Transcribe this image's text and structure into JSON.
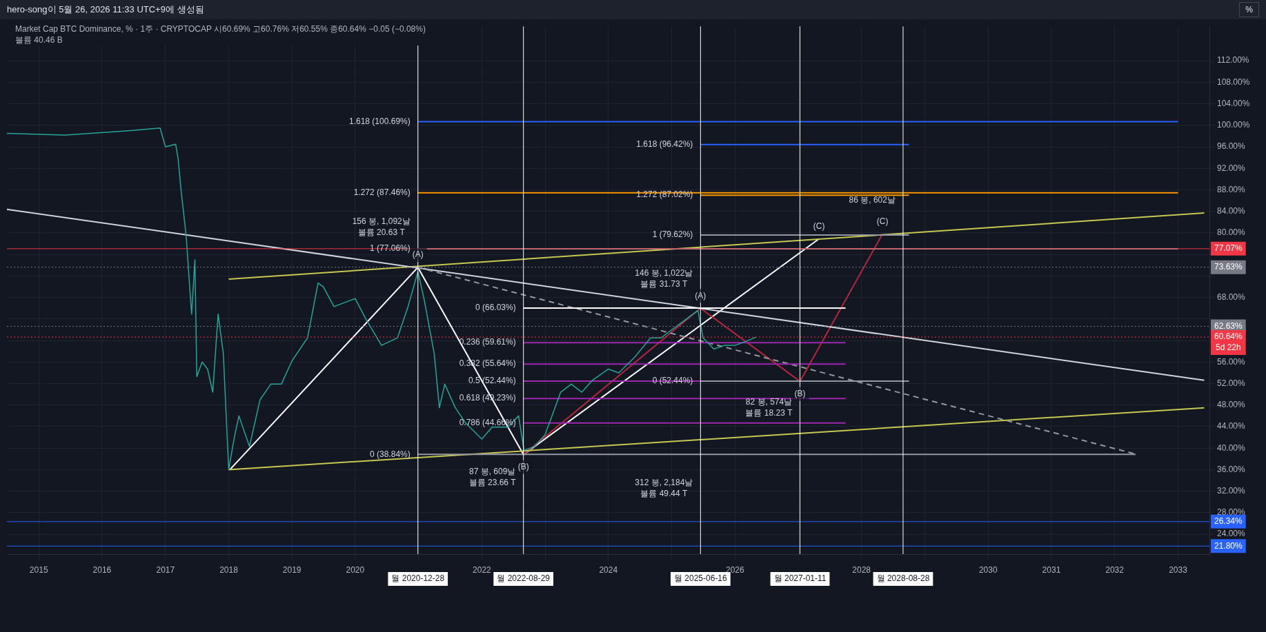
{
  "chart_data": {
    "type": "line",
    "title": "Market Cap BTC Dominance, % · 1주 · CRYPTOCAP  시60.69%  고60.76%  저60.55%  종60.64%  −0.05 (−0.08%)",
    "subtitle": "볼륨 40.46 B",
    "xlim": [
      "2014-07",
      "2033-07"
    ],
    "xticks": [
      "2015",
      "2016",
      "2017",
      "2018",
      "2019",
      "2020",
      {
        "value": "2021",
        "label": null
      },
      "2022",
      {
        "value": "2023",
        "label": null
      },
      "2024",
      {
        "value": "2025",
        "label": null
      },
      "2026",
      {
        "value": "2027",
        "label": null
      },
      "2028",
      {
        "value": "2029",
        "label": null
      },
      "2030",
      "2031",
      "2032",
      "2033"
    ],
    "ylim": [
      20.3,
      118.4
    ],
    "yticks": [
      {
        "value": 24,
        "label": "24.00%"
      },
      {
        "value": 28,
        "label": "28.00%"
      },
      {
        "value": 32,
        "label": "32.00%"
      },
      {
        "value": 36,
        "label": "36.00%"
      },
      {
        "value": 40,
        "label": "40.00%"
      },
      {
        "value": 44,
        "label": "44.00%"
      },
      {
        "value": 48,
        "label": "48.00%"
      },
      {
        "value": 52,
        "label": "52.00%"
      },
      {
        "value": 56,
        "label": "56.00%"
      },
      {
        "value": 60,
        "label": null
      },
      {
        "value": 64,
        "label": null
      },
      {
        "value": 68,
        "label": "68.00%"
      },
      {
        "value": 72,
        "label": null
      },
      {
        "value": 76,
        "label": null
      },
      {
        "value": 80,
        "label": "80.00%"
      },
      {
        "value": 84,
        "label": "84.00%"
      },
      {
        "value": 88,
        "label": "88.00%"
      },
      {
        "value": 92,
        "label": "92.00%"
      },
      {
        "value": 96,
        "label": "96.00%"
      },
      {
        "value": 100,
        "label": "100.00%"
      },
      {
        "value": 104,
        "label": "104.00%"
      },
      {
        "value": 108,
        "label": "108.00%"
      },
      {
        "value": 112,
        "label": "112.00%"
      }
    ],
    "grid": true,
    "legend": false,
    "marker": "none",
    "line_style": "solid",
    "series": [
      {
        "color": "#26a69a",
        "x": [
          "2014-07",
          "2015-06",
          "2016-06",
          "2016-12",
          "2017-01",
          "2017-03",
          "2017-03-15",
          "2017-04",
          "2017-05",
          "2017-06",
          "2017-06-20",
          "2017-07",
          "2017-08",
          "2017-09",
          "2017-10",
          "2017-11",
          "2017-12",
          "2018-01",
          "2018-02",
          "2018-03",
          "2018-05",
          "2018-07",
          "2018-09",
          "2018-11",
          "2019-01",
          "2019-04",
          "2019-06",
          "2019-07",
          "2019-09",
          "2020-01",
          "2020-03",
          "2020-06",
          "2020-09",
          "2020-11",
          "2020-12-28",
          "2021-02",
          "2021-04",
          "2021-05",
          "2021-06",
          "2021-08",
          "2021-10",
          "2022-01",
          "2022-03",
          "2022-06",
          "2022-08",
          "2022-09",
          "2022-11",
          "2023-01",
          "2023-04",
          "2023-06",
          "2023-08",
          "2023-10",
          "2024-01",
          "2024-03",
          "2024-06",
          "2024-09",
          "2024-11",
          "2025-01",
          "2025-03",
          "2025-06",
          "2025-07",
          "2025-09",
          "2025-11",
          "2026-01",
          "2026-03",
          "2026-05"
        ],
        "values": [
          98.5,
          98.2,
          99.0,
          99.5,
          96,
          96.5,
          93.8,
          88,
          79.3,
          64.9,
          75,
          53.3,
          56,
          54.7,
          50.4,
          64.9,
          57.6,
          36,
          41.7,
          46,
          40.3,
          49,
          51.9,
          51.9,
          56.2,
          60.5,
          70.7,
          70,
          66.3,
          67.8,
          64.1,
          59.1,
          60.5,
          66.3,
          72.8,
          67.8,
          57.6,
          47.5,
          51.9,
          47.5,
          44.6,
          41.7,
          43.9,
          43.9,
          46,
          39.6,
          40.3,
          42.5,
          50.4,
          51.9,
          50.4,
          52.6,
          54.7,
          54,
          56.9,
          60.5,
          60.5,
          62,
          63.4,
          65.6,
          60.5,
          58.4,
          59.1,
          59.1,
          59.8,
          60.6
        ]
      },
      {
        "color": "#ffffff",
        "x": [
          "2018-01-08",
          "2020-12-28",
          "2022-08-29",
          "2027-05"
        ],
        "values": [
          36.0,
          73.6,
          38.8,
          78.9
        ]
      },
      {
        "color": "#b2283a",
        "x": [
          "2022-08-29",
          "2025-06-16",
          "2027-01-11",
          "2028-05"
        ],
        "values": [
          38.8,
          66.0,
          52.4,
          79.8
        ]
      },
      {
        "color": "#c8c850",
        "x": [
          "2018-01",
          "2033-06"
        ],
        "values": [
          71.4,
          83.7
        ]
      },
      {
        "color": "#c8c850",
        "x": [
          "2018-01",
          "2033-06"
        ],
        "values": [
          36.0,
          47.5
        ]
      },
      {
        "color": "#d1d4dc",
        "x": [
          "2014-07",
          "2033-06"
        ],
        "values": [
          84.4,
          52.6
        ]
      },
      {
        "color": "#9598a1",
        "line_style": "dashed",
        "x": [
          "2020-12-28",
          "2032-05"
        ],
        "values": [
          73.6,
          38.9
        ]
      },
      {
        "color": "#2962ff",
        "x": [
          "2020-12-28",
          "2033-01"
        ],
        "values": [
          100.69,
          100.69
        ]
      },
      {
        "color": "#ff9800",
        "x": [
          "2020-12-28",
          "2033-01"
        ],
        "values": [
          87.46,
          87.46
        ]
      },
      {
        "color": "#9598a1",
        "x": [
          "2020-12-28",
          "2033-01"
        ],
        "values": [
          77.06,
          77.06
        ]
      },
      {
        "color": "#9598a1",
        "x": [
          "2020-12-28",
          "2032-05"
        ],
        "values": [
          38.84,
          38.84
        ]
      },
      {
        "color": "#ffffff",
        "x": [
          "2022-08-29",
          "2027-10"
        ],
        "values": [
          66.03,
          66.03
        ]
      },
      {
        "color": "#9c27b0",
        "x": [
          "2022-08-29",
          "2027-10"
        ],
        "values": [
          59.61,
          59.61
        ]
      },
      {
        "color": "#9c27b0",
        "x": [
          "2022-08-29",
          "2027-10"
        ],
        "values": [
          55.64,
          55.64
        ]
      },
      {
        "color": "#9c27b0",
        "x": [
          "2022-08-29",
          "2027-10"
        ],
        "values": [
          52.44,
          52.44
        ]
      },
      {
        "color": "#9c27b0",
        "x": [
          "2022-08-29",
          "2027-10"
        ],
        "values": [
          49.23,
          49.23
        ]
      },
      {
        "color": "#9c27b0",
        "x": [
          "2022-08-29",
          "2027-10"
        ],
        "values": [
          44.66,
          44.66
        ]
      },
      {
        "color": "#2962ff",
        "x": [
          "2025-06-16",
          "2028-10"
        ],
        "values": [
          96.42,
          96.42
        ]
      },
      {
        "color": "#ff9800",
        "x": [
          "2025-06-16",
          "2028-10"
        ],
        "values": [
          87.02,
          87.02
        ]
      },
      {
        "color": "#9598a1",
        "x": [
          "2025-06-16",
          "2028-10"
        ],
        "values": [
          79.62,
          79.62
        ]
      },
      {
        "color": "#9598a1",
        "x": [
          "2025-06-16",
          "2028-10"
        ],
        "values": [
          52.44,
          52.44
        ]
      }
    ],
    "ref_lines": [
      {
        "axis": "y",
        "value": 77.07,
        "label": "77.07%",
        "color": "#f23645"
      },
      {
        "axis": "y",
        "value": 73.63,
        "label": "73.63%",
        "color": "#787b86",
        "line_style": "dotted"
      },
      {
        "axis": "y",
        "value": 62.63,
        "label": "62.63%",
        "color": "#787b86",
        "line_style": "dotted"
      },
      {
        "axis": "y",
        "value": 60.64,
        "label": "60.64%\n5d 22h",
        "color": "#f23645",
        "line_style": "dotted"
      },
      {
        "axis": "y",
        "value": 26.34,
        "label": "26.34%",
        "color": "#2962ff"
      },
      {
        "axis": "y",
        "value": 21.8,
        "label": "21.80%",
        "color": "#2962ff"
      },
      {
        "axis": "x",
        "value": "2020-12-28",
        "label": "월 2020-12-28",
        "color": "#ffffff"
      },
      {
        "axis": "x",
        "value": "2022-08-29",
        "label": "월 2022-08-29",
        "color": "#ffffff"
      },
      {
        "axis": "x",
        "value": "2025-06-16",
        "label": "월 2025-06-16",
        "color": "#ffffff"
      },
      {
        "axis": "x",
        "value": "2027-01-11",
        "label": "월 2027-01-11",
        "color": "#ffffff"
      },
      {
        "axis": "x",
        "value": "2028-08-28",
        "label": "월 2028-08-28",
        "color": "#ffffff"
      }
    ],
    "annotations": [
      "hero-song이 5월 26, 2026 11:33 UTC+9에 생성됨",
      "%",
      {
        "text": "156 봉, 1,092날\n볼륨 20.63 T",
        "x": "2020-12-28",
        "y": 81
      },
      {
        "text": "87 봉, 609날\n볼륨 23.66 T",
        "x": "2022-08-29",
        "y": 34.5
      },
      {
        "text": "146 봉, 1,022날\n볼륨 31.73 T",
        "x": "2025-06-16",
        "y": 71.5
      },
      {
        "text": "82 봉, 574날\n볼륨 18.23 T",
        "x": "2027-01-11",
        "y": 47.5
      },
      {
        "text": "312 봉, 2,184날\n볼륨 49.44 T",
        "x": "2025-06-16",
        "y": 32.5
      },
      {
        "text": "86 봉, 602날",
        "x": "2028-08-28",
        "y": 86
      },
      {
        "text": "(A)",
        "x": "2020-12-28",
        "y": 73.6
      },
      {
        "text": "(B)",
        "x": "2022-08-29",
        "y": 38.8
      },
      {
        "text": "(C)",
        "x": "2027-05",
        "y": 78.9
      },
      {
        "text": "(A)",
        "x": "2025-06-16",
        "y": 66.0
      },
      {
        "text": "(B)",
        "x": "2027-01-11",
        "y": 52.4
      },
      {
        "text": "(C)",
        "x": "2028-05",
        "y": 79.8
      },
      {
        "text": "1.618 (100.69%)",
        "x": "2020-12-28",
        "y": 100.69
      },
      {
        "text": "1.272 (87.46%)",
        "x": "2020-12-28",
        "y": 87.46
      },
      {
        "text": "1 (77.06%)",
        "x": "2020-12-28",
        "y": 77.06
      },
      {
        "text": "0 (38.84%)",
        "x": "2020-12-28",
        "y": 38.84
      },
      {
        "text": "0 (66.03%)",
        "x": "2022-08-29",
        "y": 66.03
      },
      {
        "text": "0.236 (59.61%)",
        "x": "2022-08-29",
        "y": 59.61
      },
      {
        "text": "0.382 (55.64%)",
        "x": "2022-08-29",
        "y": 55.64
      },
      {
        "text": "0.5 (52.44%)",
        "x": "2022-08-29",
        "y": 52.44
      },
      {
        "text": "0.618 (49.23%)",
        "x": "2022-08-29",
        "y": 49.23
      },
      {
        "text": "0.786 (44.66%)",
        "x": "2022-08-29",
        "y": 44.66
      },
      {
        "text": "1.618 (96.42%)",
        "x": "2025-06-16",
        "y": 96.42
      },
      {
        "text": "1.272 (87.02%)",
        "x": "2025-06-16",
        "y": 87.02
      },
      {
        "text": "1 (79.62%)",
        "x": "2025-06-16",
        "y": 79.62
      },
      {
        "text": "0 (52.44%)",
        "x": "2025-06-16",
        "y": 52.44
      }
    ]
  }
}
